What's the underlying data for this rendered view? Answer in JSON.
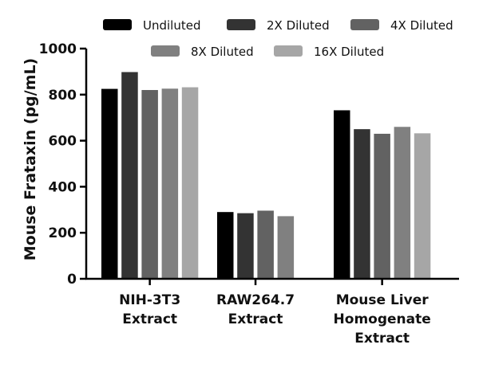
{
  "chart_data": {
    "type": "bar",
    "title": "",
    "xlabel": "",
    "ylabel": "Mouse Frataxin (pg/mL)",
    "ylim": [
      0,
      1000
    ],
    "yticks": [
      0,
      200,
      400,
      600,
      800,
      1000
    ],
    "categories": [
      [
        "NIH-3T3",
        "Extract"
      ],
      [
        "RAW264.7",
        "Extract"
      ],
      [
        "Mouse Liver",
        "Homogenate",
        "Extract"
      ]
    ],
    "series": [
      {
        "name": "Undiluted",
        "color": "#000000",
        "values": [
          825,
          290,
          732
        ]
      },
      {
        "name": "2X Diluted",
        "color": "#333333",
        "values": [
          898,
          285,
          650
        ]
      },
      {
        "name": "4X Diluted",
        "color": "#626262",
        "values": [
          820,
          296,
          630
        ]
      },
      {
        "name": "8X Diluted",
        "color": "#808080",
        "values": [
          826,
          272,
          660
        ]
      },
      {
        "name": "16X Diluted",
        "color": "#a6a6a6",
        "values": [
          832,
          null,
          632
        ]
      }
    ],
    "legend_position": "top"
  }
}
